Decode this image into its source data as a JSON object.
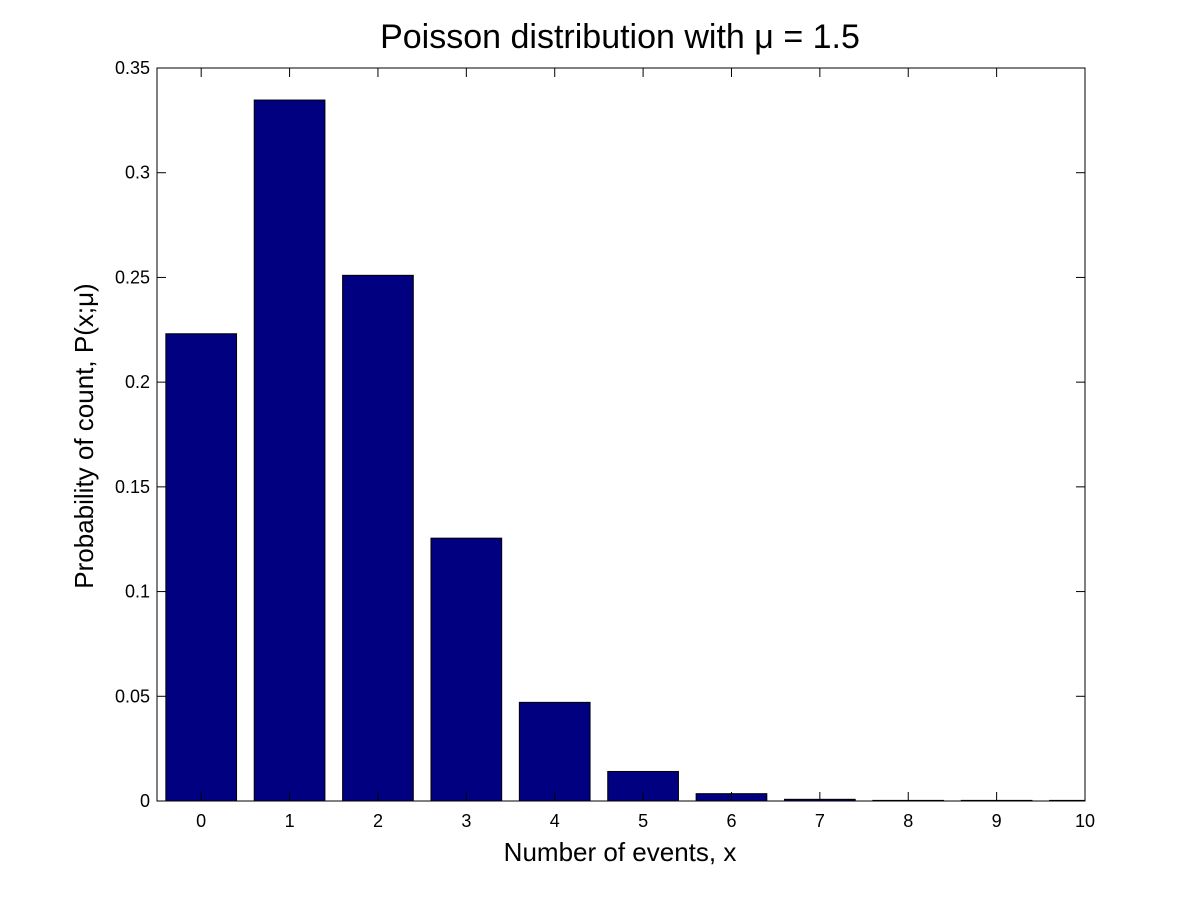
{
  "chart_data": {
    "type": "bar",
    "title": "Poisson distribution with μ = 1.5",
    "xlabel": "Number of events, x",
    "ylabel": "Probability of count, P(x;μ)",
    "categories": [
      "0",
      "1",
      "2",
      "3",
      "4",
      "5",
      "6",
      "7",
      "8",
      "9",
      "10"
    ],
    "x": [
      0,
      1,
      2,
      3,
      4,
      5,
      6,
      7,
      8,
      9,
      10
    ],
    "values": [
      0.2231,
      0.3347,
      0.251,
      0.1255,
      0.0471,
      0.0141,
      0.0035,
      0.0008,
      0.0001,
      3e-05,
      4e-06
    ],
    "xlim": [
      -0.5,
      10
    ],
    "ylim": [
      0,
      0.35
    ],
    "yticks": [
      0,
      0.05,
      0.1,
      0.15,
      0.2,
      0.25,
      0.3,
      0.35
    ],
    "ytick_labels": [
      "0",
      "0.05",
      "0.1",
      "0.15",
      "0.2",
      "0.25",
      "0.3",
      "0.35"
    ],
    "xticks": [
      0,
      1,
      2,
      3,
      4,
      5,
      6,
      7,
      8,
      9,
      10
    ],
    "xtick_labels": [
      "0",
      "1",
      "2",
      "3",
      "4",
      "5",
      "6",
      "7",
      "8",
      "9",
      "10"
    ],
    "bar_color": "#000080",
    "bar_edge_color": "#000000",
    "grid": false,
    "legend": "none"
  }
}
